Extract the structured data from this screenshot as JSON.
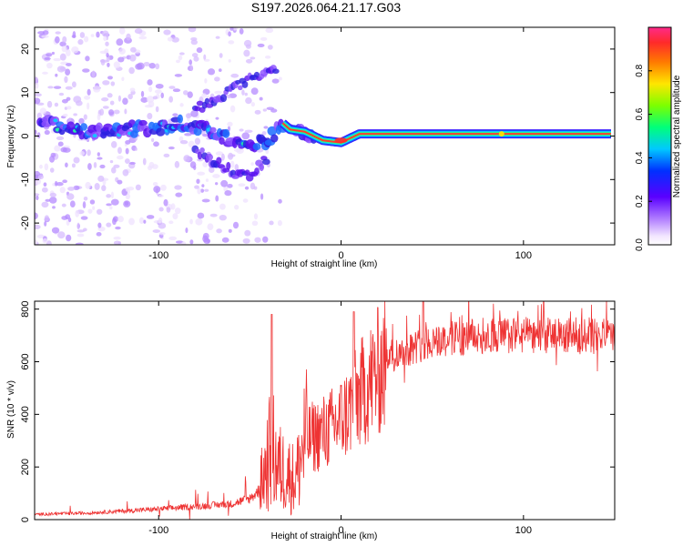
{
  "title": "S197.2026.064.21.17.G03",
  "chart_data": [
    {
      "type": "heatmap",
      "name": "spectrogram",
      "xlabel": "Height of straight line (km)",
      "ylabel": "Frequency (Hz)",
      "xlim": [
        -168,
        150
      ],
      "ylim": [
        -25,
        25
      ],
      "xticks": [
        -100,
        0,
        100
      ],
      "yticks": [
        -20,
        -10,
        0,
        10,
        20
      ],
      "colorbar": {
        "label": "Normalized spectral amplitude",
        "range": [
          0,
          1
        ],
        "ticks": [
          0.0,
          0.2,
          0.4,
          0.6,
          0.8
        ]
      },
      "ridge": {
        "x": [
          -160,
          -140,
          -120,
          -100,
          -85,
          -70,
          -60,
          -50,
          -40,
          -32,
          -28,
          -20,
          -10,
          0,
          10,
          20,
          50,
          100,
          148
        ],
        "y": [
          3,
          1,
          1.5,
          2,
          3,
          1,
          -1,
          -2,
          -1,
          3,
          1.5,
          1,
          -1,
          -1.5,
          0.5,
          0.5,
          0.5,
          0.5,
          0.5
        ]
      },
      "upper_branch": {
        "x": [
          -80,
          -70,
          -60,
          -50,
          -40,
          -35
        ],
        "y": [
          6,
          8,
          11,
          13,
          15,
          15
        ]
      },
      "lower_branch": {
        "x": [
          -80,
          -70,
          -60,
          -55,
          -50,
          -45,
          -40
        ],
        "y": [
          -3,
          -6,
          -8,
          -9,
          -9,
          -7,
          -5
        ]
      }
    },
    {
      "type": "line",
      "name": "snr",
      "xlabel": "Height of straight line (km)",
      "ylabel": "SNR (10 * v/v)",
      "xlim": [
        -168,
        150
      ],
      "ylim": [
        0,
        830
      ],
      "xticks": [
        -100,
        0,
        100
      ],
      "yticks": [
        0,
        200,
        400,
        600,
        800
      ],
      "line_color": "#ee3333",
      "anchors": {
        "x": [
          -168,
          -140,
          -100,
          -80,
          -60,
          -50,
          -45,
          -40,
          -38,
          -35,
          -30,
          -25,
          -20,
          -10,
          -5,
          0,
          5,
          10,
          20,
          30,
          50,
          80,
          120,
          150
        ],
        "y": [
          20,
          25,
          40,
          50,
          60,
          80,
          110,
          230,
          280,
          200,
          180,
          150,
          300,
          330,
          350,
          380,
          420,
          470,
          560,
          630,
          680,
          700,
          700,
          695
        ]
      },
      "spikes": {
        "x": [
          -38,
          7,
          45
        ],
        "y": [
          780,
          790,
          830
        ]
      }
    }
  ]
}
